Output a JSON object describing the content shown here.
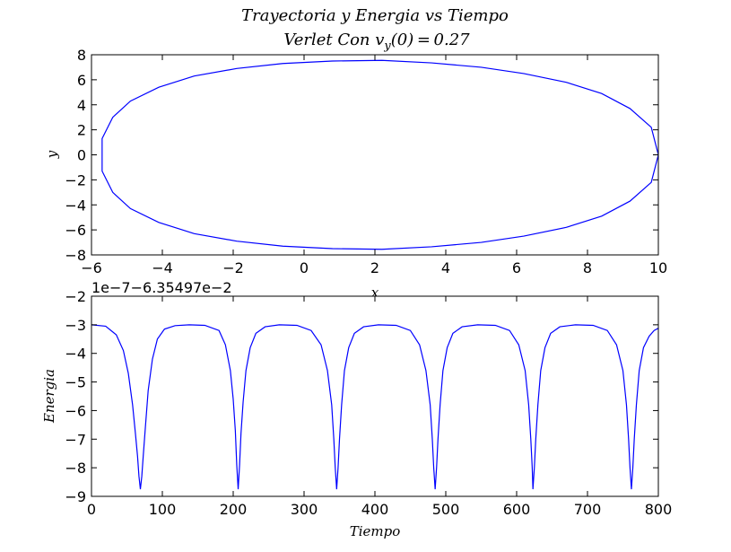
{
  "figure": {
    "title": "Trayectoria y Energia vs Tiempo",
    "subtitle_prefix": "Verlet Con v",
    "subtitle_sub": "y",
    "subtitle_suffix": "(0) = 0.27"
  },
  "chart_data": [
    {
      "type": "line",
      "name": "trajectory",
      "xlabel": "x",
      "ylabel": "y",
      "xlim": [
        -6,
        10
      ],
      "ylim": [
        -8,
        8
      ],
      "xticks": [
        -6,
        -4,
        -2,
        0,
        2,
        4,
        6,
        8,
        10
      ],
      "yticks": [
        -8,
        -6,
        -4,
        -2,
        0,
        2,
        4,
        6,
        8
      ],
      "xtick_labels": [
        "−6",
        "−4",
        "−2",
        "0",
        "2",
        "4",
        "6",
        "8",
        "10"
      ],
      "ytick_labels": [
        "−8",
        "−6",
        "−4",
        "−2",
        "0",
        "2",
        "4",
        "6",
        "8"
      ],
      "grid": false,
      "color": "#0000ff",
      "x": [
        10.0,
        9.8,
        9.2,
        8.4,
        7.4,
        6.2,
        5.0,
        3.6,
        2.2,
        0.8,
        -0.6,
        -1.9,
        -3.1,
        -4.1,
        -4.9,
        -5.4,
        -5.7,
        -5.7,
        -5.4,
        -4.9,
        -4.1,
        -3.1,
        -1.9,
        -0.6,
        0.8,
        2.2,
        3.6,
        5.0,
        6.2,
        7.4,
        8.4,
        9.2,
        9.8,
        10.0
      ],
      "y": [
        0.0,
        2.2,
        3.7,
        4.9,
        5.8,
        6.5,
        7.0,
        7.35,
        7.55,
        7.5,
        7.3,
        6.9,
        6.3,
        5.4,
        4.3,
        3.0,
        1.3,
        -1.3,
        -3.0,
        -4.3,
        -5.4,
        -6.3,
        -6.9,
        -7.3,
        -7.5,
        -7.55,
        -7.35,
        -7.0,
        -6.5,
        -5.8,
        -4.9,
        -3.7,
        -2.2,
        0.0
      ]
    },
    {
      "type": "line",
      "name": "energy",
      "xlabel": "Tiempo",
      "ylabel": "Energia",
      "offset_text": "1e−7−6.35497e−2",
      "xlim": [
        0,
        800
      ],
      "ylim": [
        -9,
        -2
      ],
      "xticks": [
        0,
        100,
        200,
        300,
        400,
        500,
        600,
        700,
        800
      ],
      "yticks": [
        -9,
        -8,
        -7,
        -6,
        -5,
        -4,
        -3,
        -2
      ],
      "xtick_labels": [
        "0",
        "100",
        "200",
        "300",
        "400",
        "500",
        "600",
        "700",
        "800"
      ],
      "ytick_labels": [
        "−9",
        "−8",
        "−7",
        "−6",
        "−5",
        "−4",
        "−3",
        "−2"
      ],
      "grid": false,
      "color": "#0000ff",
      "baseline": -3.0,
      "minimum": -8.75,
      "dip_times": [
        69,
        207,
        346,
        485,
        623,
        762
      ],
      "x": [
        0,
        20,
        35,
        45,
        52,
        58,
        62,
        65,
        67,
        69,
        71,
        73,
        76,
        80,
        86,
        93,
        103,
        118,
        138,
        160,
        180,
        189,
        196,
        200,
        203,
        205,
        207,
        209,
        211,
        214,
        218,
        224,
        232,
        245,
        265,
        290,
        310,
        324,
        333,
        339,
        342,
        344,
        346,
        348,
        350,
        353,
        357,
        363,
        371,
        384,
        405,
        430,
        450,
        463,
        472,
        478,
        481,
        483,
        485,
        487,
        489,
        492,
        496,
        502,
        510,
        523,
        545,
        570,
        590,
        603,
        612,
        617,
        620,
        622,
        623,
        625,
        627,
        630,
        634,
        640,
        648,
        661,
        683,
        708,
        728,
        741,
        750,
        755,
        758,
        760,
        762,
        764,
        766,
        769,
        773,
        779,
        787,
        794,
        800
      ],
      "y": [
        -3.0,
        -3.05,
        -3.35,
        -3.9,
        -4.7,
        -5.8,
        -6.8,
        -7.6,
        -8.3,
        -8.75,
        -8.3,
        -7.6,
        -6.6,
        -5.3,
        -4.2,
        -3.5,
        -3.15,
        -3.03,
        -3.0,
        -3.02,
        -3.2,
        -3.7,
        -4.6,
        -5.6,
        -6.7,
        -7.9,
        -8.75,
        -7.9,
        -6.8,
        -5.7,
        -4.6,
        -3.8,
        -3.3,
        -3.07,
        -3.0,
        -3.02,
        -3.2,
        -3.7,
        -4.6,
        -5.8,
        -7.0,
        -8.0,
        -8.75,
        -8.0,
        -7.0,
        -5.8,
        -4.6,
        -3.8,
        -3.3,
        -3.07,
        -3.0,
        -3.02,
        -3.2,
        -3.7,
        -4.6,
        -5.8,
        -7.0,
        -8.0,
        -8.75,
        -8.0,
        -7.0,
        -5.8,
        -4.6,
        -3.8,
        -3.3,
        -3.07,
        -3.0,
        -3.02,
        -3.2,
        -3.7,
        -4.6,
        -5.8,
        -7.0,
        -8.0,
        -8.75,
        -8.0,
        -7.0,
        -5.8,
        -4.6,
        -3.8,
        -3.3,
        -3.07,
        -3.0,
        -3.02,
        -3.2,
        -3.7,
        -4.6,
        -5.8,
        -7.0,
        -8.0,
        -8.75,
        -8.0,
        -7.0,
        -5.8,
        -4.6,
        -3.8,
        -3.4,
        -3.2,
        -3.12
      ]
    }
  ]
}
